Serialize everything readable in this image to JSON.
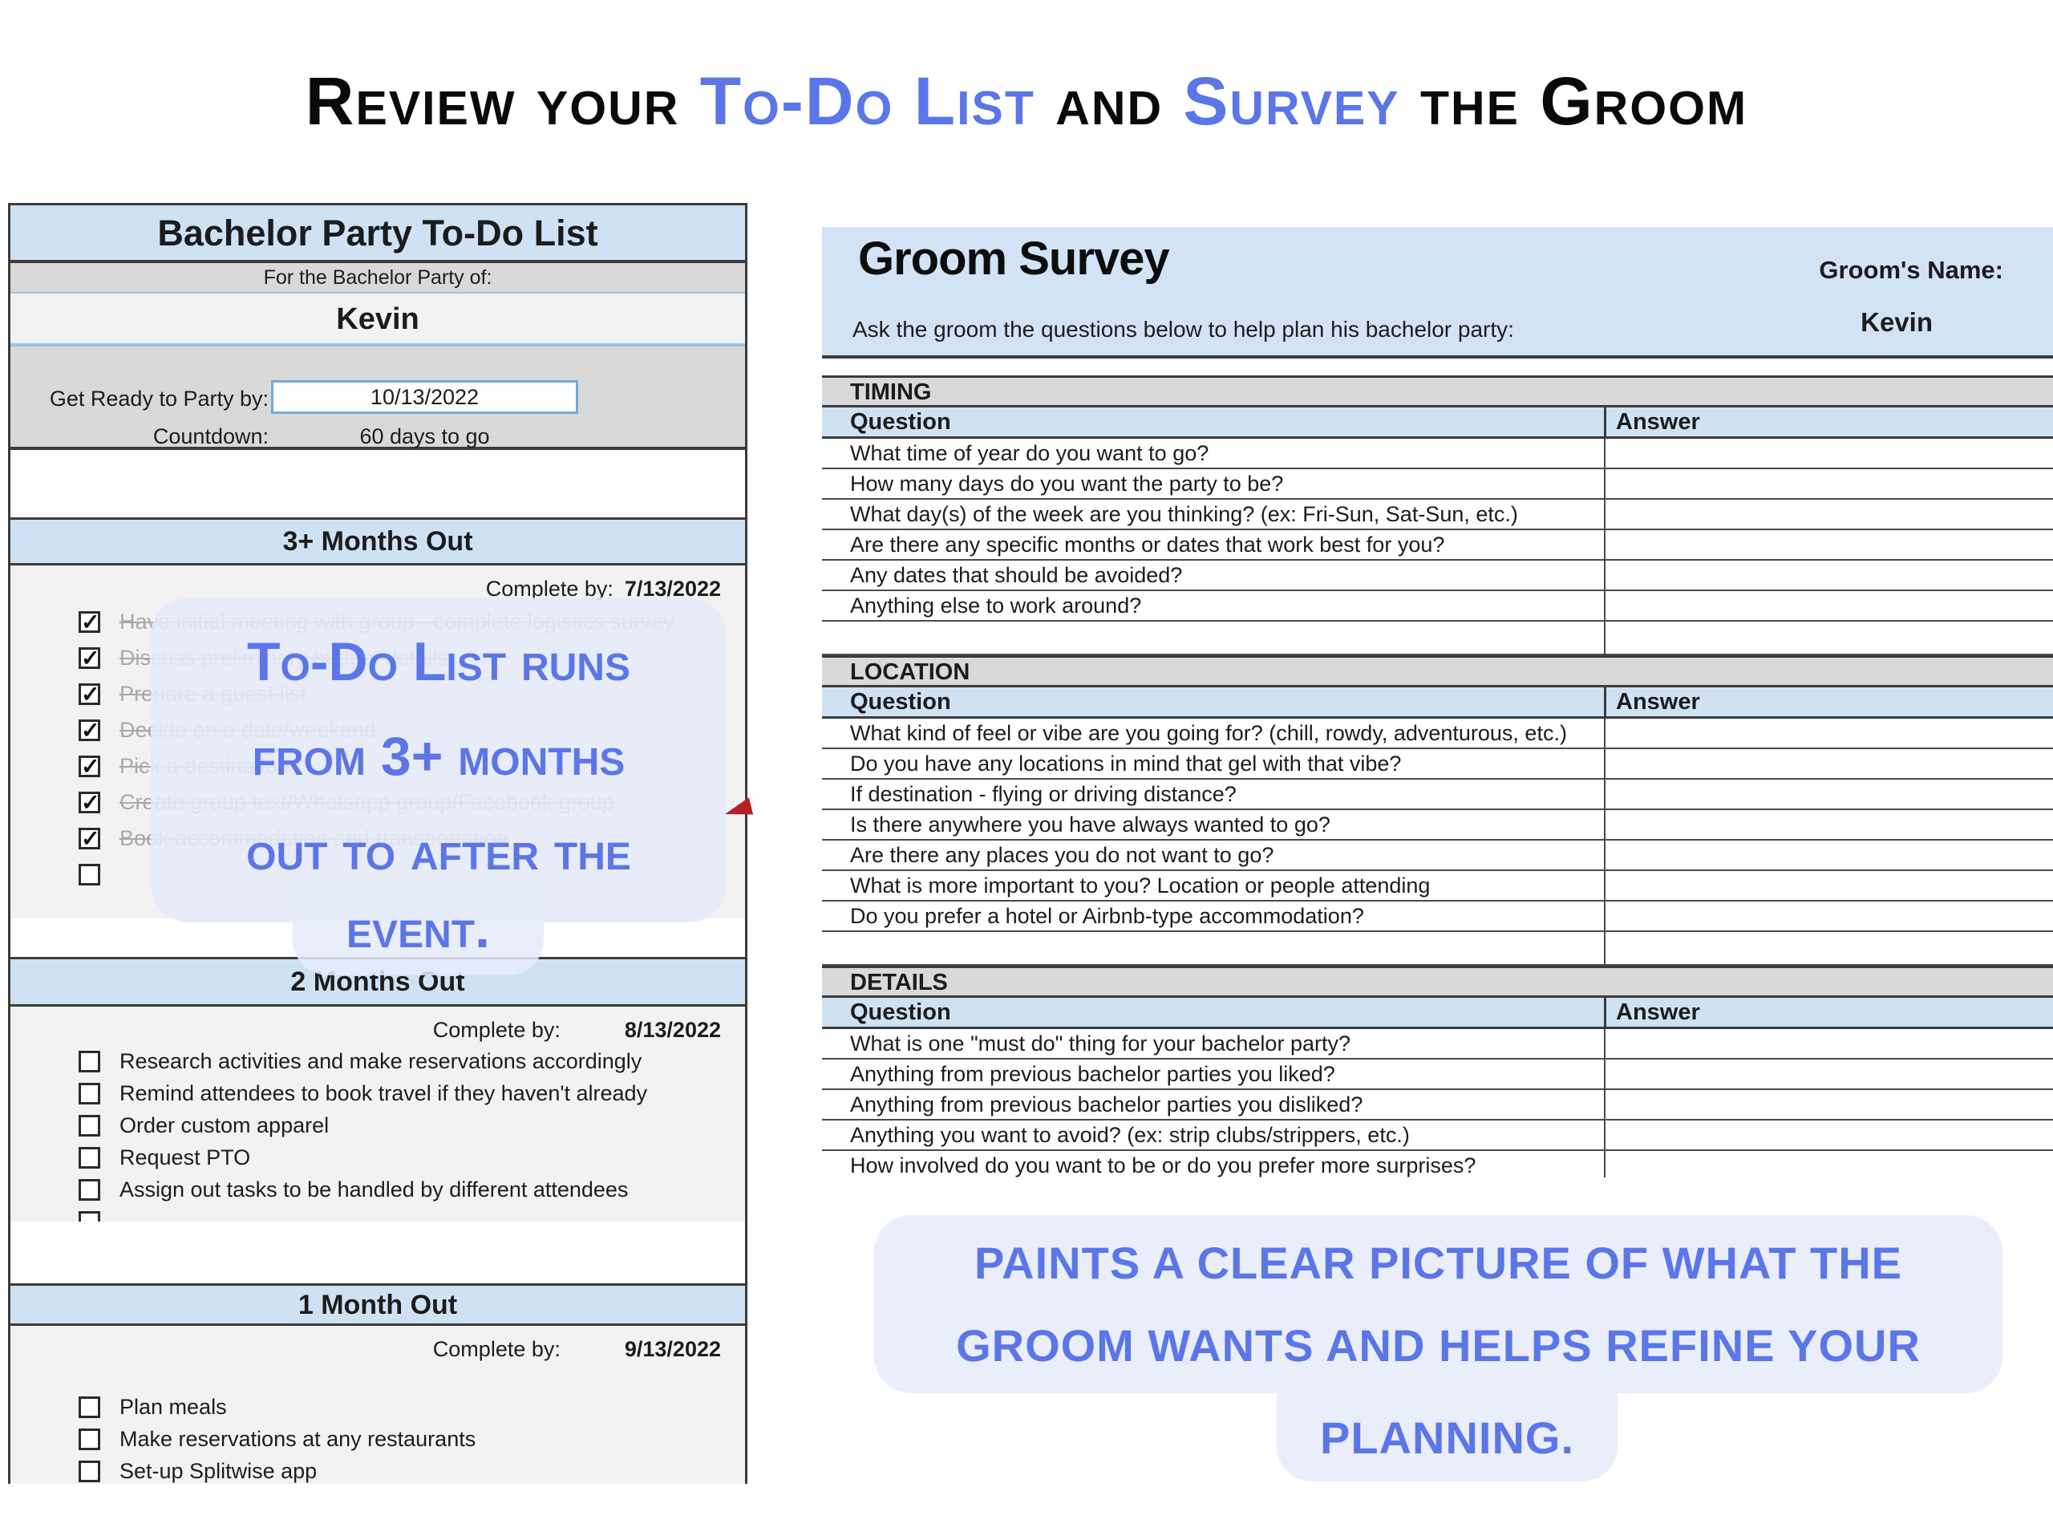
{
  "title": {
    "seg1": "Review your ",
    "seg2": "To-Do List",
    "seg3": " and ",
    "seg4": "Survey",
    "seg5": " the Groom"
  },
  "todo": {
    "title": "Bachelor Party To-Do List",
    "for_label": "For the Bachelor Party of:",
    "name": "Kevin",
    "ready_label": "Get Ready to Party by:",
    "ready_date": "10/13/2022",
    "countdown_label": "Countdown:",
    "countdown_value": "60 days to go",
    "sections": [
      {
        "title": "3+ Months Out",
        "complete_label": "Complete by:",
        "complete_date": "7/13/2022",
        "items": [
          {
            "text": "Have initial meeting with group - complete logistics survey",
            "state": "done"
          },
          {
            "text": "Discuss preliminary budget details",
            "state": "done"
          },
          {
            "text": "Prepare a guest list",
            "state": "done"
          },
          {
            "text": "Decide on a date/weekend",
            "state": "done"
          },
          {
            "text": "Pick a destination",
            "state": "done"
          },
          {
            "text": "Create group text/Whatsapp group/Facebook group",
            "state": "done"
          },
          {
            "text": "Book accommodation and transportation",
            "state": "done"
          },
          {
            "text": "",
            "state": "blank"
          }
        ]
      },
      {
        "title": "2 Months Out",
        "complete_label": "Complete by:",
        "complete_date": "8/13/2022",
        "items": [
          {
            "text": "Research activities and make reservations accordingly",
            "state": "todo"
          },
          {
            "text": "Remind attendees to book travel if they haven't already",
            "state": "todo"
          },
          {
            "text": "Order custom apparel",
            "state": "todo"
          },
          {
            "text": "Request PTO",
            "state": "todo"
          },
          {
            "text": "Assign out tasks to be handled by different attendees",
            "state": "todo"
          },
          {
            "text": "",
            "state": "blank"
          }
        ]
      },
      {
        "title": "1 Month Out",
        "complete_label": "Complete by:",
        "complete_date": "9/13/2022",
        "items": [
          {
            "text": "Plan meals",
            "state": "todo"
          },
          {
            "text": "Make reservations at any restaurants",
            "state": "todo"
          },
          {
            "text": "Set-up Splitwise app",
            "state": "todo"
          }
        ]
      }
    ]
  },
  "survey": {
    "title": "Groom Survey",
    "groom_name_label": "Groom's Name:",
    "groom_name": "Kevin",
    "intro": "Ask the groom the questions below to help plan his bachelor party:",
    "col_question": "Question",
    "col_answer": "Answer",
    "sections": [
      {
        "title": "TIMING",
        "trailing_empty": true,
        "questions": [
          "What time of year do you want to go?",
          "How many days do you want the party to be?",
          "What day(s) of the week are you thinking? (ex: Fri-Sun, Sat-Sun, etc.)",
          "Are there any specific months or dates that work best for you?",
          "Any dates that should be avoided?",
          "Anything else to work around?"
        ]
      },
      {
        "title": "LOCATION",
        "trailing_empty": true,
        "questions": [
          "What kind of feel or vibe are you going for? (chill, rowdy, adventurous, etc.)",
          "Do you have any locations in mind that gel with that vibe?",
          "If destination - flying or driving distance?",
          "Is there anywhere you have always wanted to go?",
          "Are there any places you do not want to go?",
          "What is more important to you? Location or people attending",
          "Do you prefer a hotel or Airbnb-type accommodation?"
        ]
      },
      {
        "title": "DETAILS",
        "trailing_empty": false,
        "questions": [
          "What is one \"must do\" thing for your bachelor party?",
          "Anything from previous bachelor parties you liked?",
          "Anything from previous bachelor parties you disliked?",
          "Anything you want to avoid? (ex: strip clubs/strippers, etc.)",
          "How involved do you want to be or do you prefer more surprises?"
        ]
      }
    ]
  },
  "annotations": {
    "todo_note": {
      "line1": "To-Do List runs",
      "line2": "from 3+ months",
      "line3": "out to after the",
      "line4": "event."
    },
    "survey_note": {
      "line1": "PAINTS A CLEAR PICTURE OF WHAT THE",
      "line2": "GROOM WANTS AND HELPS REFINE YOUR",
      "line3": "PLANNING."
    }
  },
  "colors": {
    "accent_blue": "#5b76e8",
    "header_blue": "#cfe2f3",
    "band_blue": "#d2e3f6",
    "section_gray": "#d9d9d9",
    "body_gray": "#f2f2f2",
    "note_bg": "#e7ebfa",
    "red_marker": "#b42025"
  }
}
